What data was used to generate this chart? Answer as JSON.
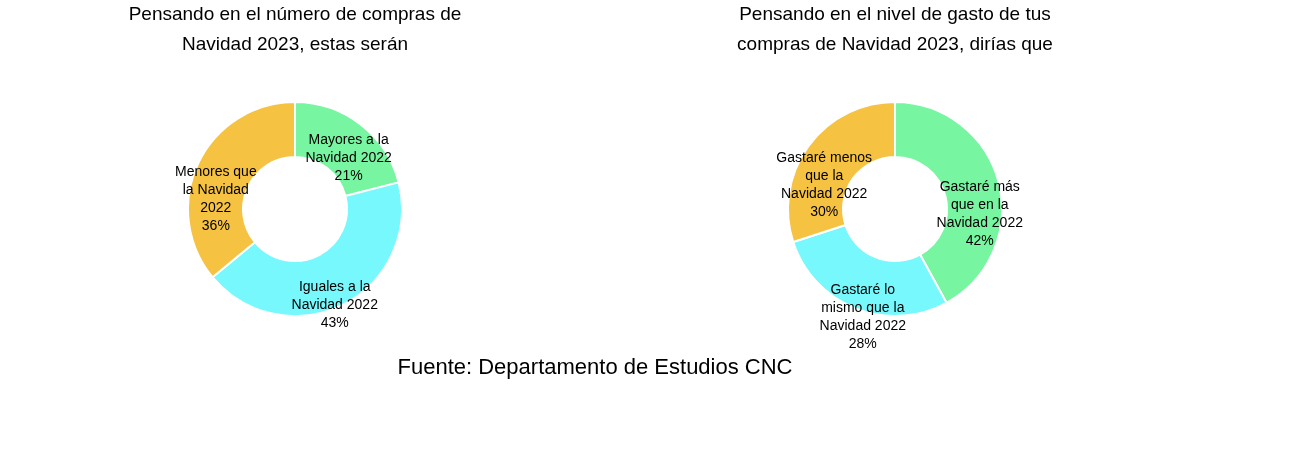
{
  "chart_data": [
    {
      "type": "donut",
      "title": "Pensando en el número de compras de Navidad 2023, estas serán",
      "categories": [
        "Mayores a la Navidad 2022",
        "Iguales a la Navidad 2022",
        "Menores que la Navidad 2022"
      ],
      "values": [
        21,
        43,
        36
      ],
      "value_labels": [
        "21%",
        "43%",
        "36%"
      ],
      "colors": [
        "#77f5a0",
        "#77f8fd",
        "#f5c242"
      ],
      "legend": false
    },
    {
      "type": "donut",
      "title": "Pensando en el nivel de gasto de tus compras de Navidad 2023, dirías que",
      "categories": [
        "Gastaré más que en la Navidad 2022",
        "Gastaré lo mismo que la Navidad 2022",
        "Gastaré menos que la Navidad 2022"
      ],
      "values": [
        42,
        28,
        30
      ],
      "value_labels": [
        "42%",
        "28%",
        "30%"
      ],
      "colors": [
        "#77f5a0",
        "#77f8fd",
        "#f5c242"
      ],
      "legend": false,
      "annotations": [
        "Fuente: Departamento de Estudios CNC"
      ]
    }
  ]
}
